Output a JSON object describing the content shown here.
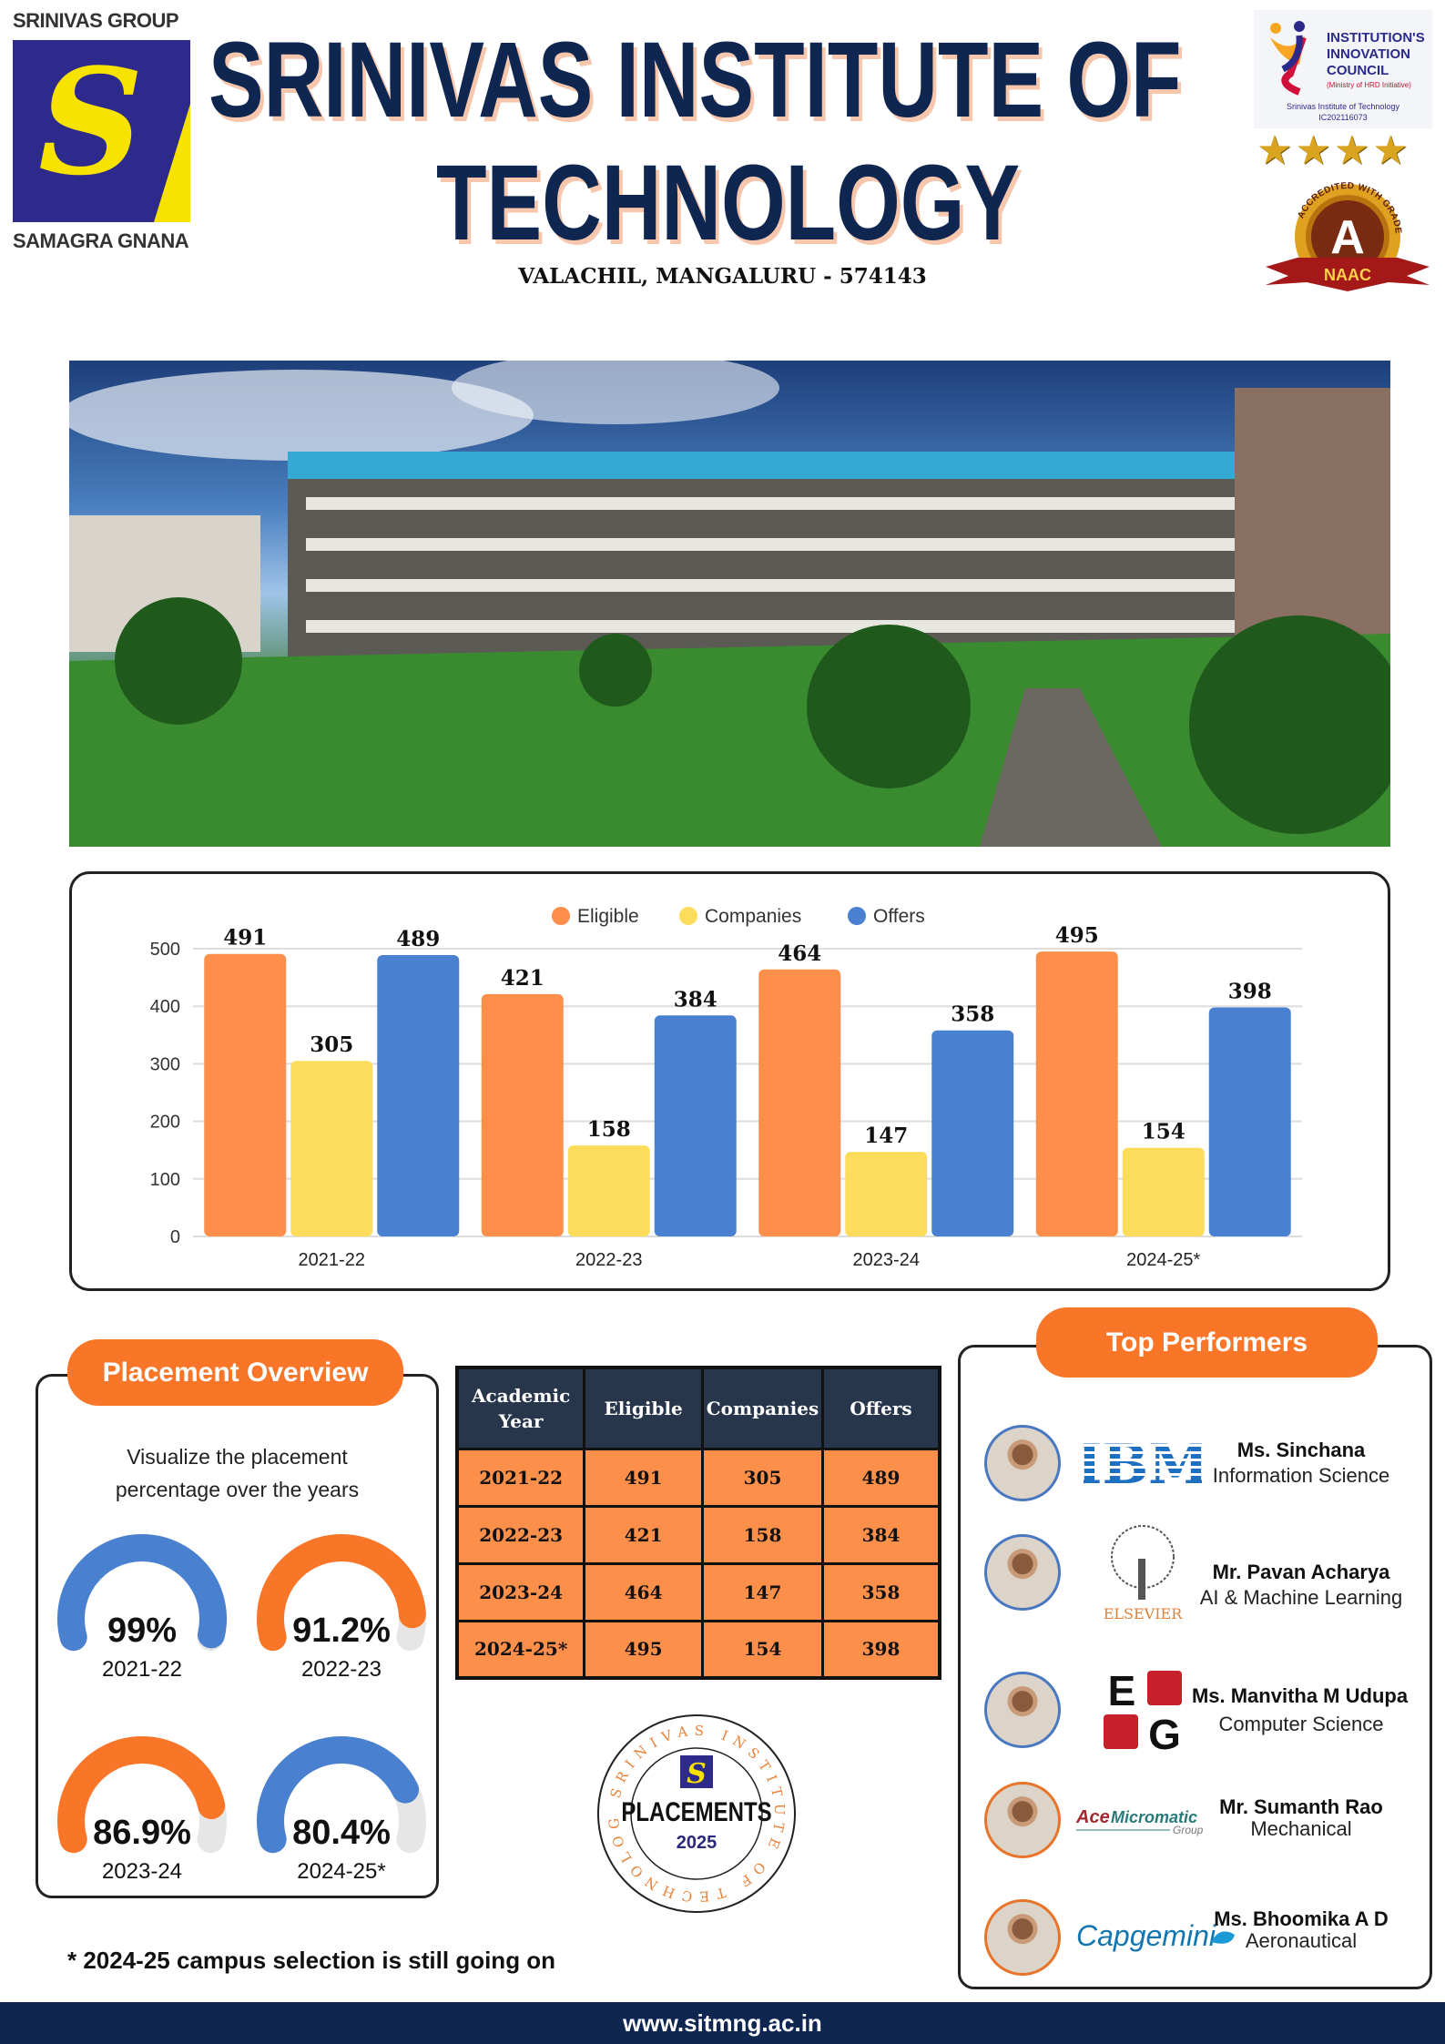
{
  "header": {
    "group_logo_top": "SRINIVAS GROUP",
    "group_logo_bottom": "SAMAGRA GNANA",
    "title_line1": "SRINIVAS INSTITUTE OF",
    "title_line2": "TECHNOLOGY",
    "address": "VALACHIL, MANGALURU - 574143",
    "iic": {
      "title": "INSTITUTION'S INNOVATION COUNCIL",
      "ministry": "(Ministry of HRD Initiative)",
      "name": "Srinivas Institute of Technology",
      "code": "IC202116073",
      "stars": 4
    },
    "naac": {
      "grade": "A",
      "label": "NAAC",
      "ribbon": "ACCREDITED WITH GRADE"
    }
  },
  "chart_data": {
    "type": "bar",
    "categories": [
      "2021-22",
      "2022-23",
      "2023-24",
      "2024-25*"
    ],
    "series": [
      {
        "name": "Eligible",
        "color": "#fd8f4a",
        "values": [
          491,
          421,
          464,
          495
        ]
      },
      {
        "name": "Companies",
        "color": "#fddc5c",
        "values": [
          305,
          158,
          147,
          154
        ]
      },
      {
        "name": "Offers",
        "color": "#4a80d0",
        "values": [
          489,
          384,
          358,
          398
        ]
      }
    ],
    "yticks": [
      "0",
      "100",
      "200",
      "300",
      "400",
      "500"
    ],
    "ylim": [
      0,
      500
    ],
    "grid": true,
    "legend": "top-center"
  },
  "overview": {
    "title": "Placement Overview",
    "subtitle_line1": "Visualize the placement",
    "subtitle_line2": "percentage over the years",
    "gauges": [
      {
        "value": "99%",
        "pct": 99,
        "year": "2021-22",
        "color": "#4a80d0"
      },
      {
        "value": "91.2%",
        "pct": 91.2,
        "year": "2022-23",
        "color": "#f97628"
      },
      {
        "value": "86.9%",
        "pct": 86.9,
        "year": "2023-24",
        "color": "#f97628"
      },
      {
        "value": "80.4%",
        "pct": 80.4,
        "year": "2024-25*",
        "color": "#4a80d0"
      }
    ]
  },
  "table": {
    "headers": [
      "Academic Year",
      "Eligible",
      "Companies",
      "Offers"
    ],
    "rows": [
      [
        "2021-22",
        "491",
        "305",
        "489"
      ],
      [
        "2022-23",
        "421",
        "158",
        "384"
      ],
      [
        "2023-24",
        "464",
        "147",
        "358"
      ],
      [
        "2024-25*",
        "495",
        "154",
        "398"
      ]
    ]
  },
  "seal": {
    "ring": "SRINIVAS INSTITUTE OF TECHNOLOGY",
    "title": "PLACEMENTS",
    "year": "2025"
  },
  "footnote": "* 2024-25 campus selection is still going on",
  "top_performers": {
    "title": "Top Performers",
    "items": [
      {
        "name": "Ms. Sinchana",
        "dept": "Information Science",
        "company": "IBM"
      },
      {
        "name": "Mr.  Pavan Acharya",
        "dept": "AI & Machine Learning",
        "company": "ELSEVIER"
      },
      {
        "name": "Ms. Manvitha M Udupa",
        "dept": "Computer Science",
        "company": "EG"
      },
      {
        "name": "Mr. Sumanth Rao",
        "dept": "Mechanical",
        "company": "AceMicromatic Group"
      },
      {
        "name": "Ms. Bhoomika A D",
        "dept": "Aeronautical",
        "company": "Capgemini"
      }
    ]
  },
  "footer": {
    "website": "www.sitmng.ac.in"
  }
}
